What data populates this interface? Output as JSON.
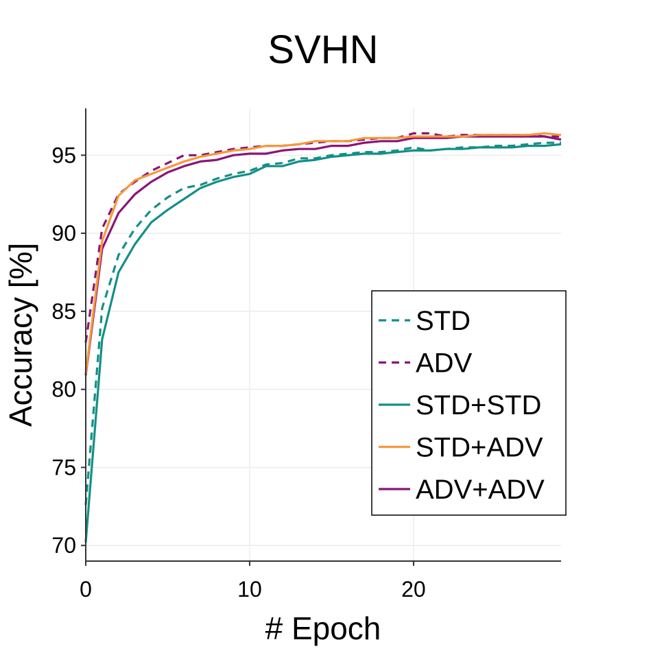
{
  "chart_data": {
    "type": "line",
    "title": "SVHN",
    "xlabel": "# Epoch",
    "ylabel": "Accuracy [%]",
    "xlim": [
      0,
      29
    ],
    "ylim": [
      69,
      98
    ],
    "xticks": [
      0,
      10,
      20
    ],
    "yticks": [
      70,
      75,
      80,
      85,
      90,
      95
    ],
    "grid": true,
    "legend_position": "center-right",
    "x": [
      0,
      1,
      2,
      3,
      4,
      5,
      6,
      7,
      8,
      9,
      10,
      11,
      12,
      13,
      14,
      15,
      16,
      17,
      18,
      19,
      20,
      21,
      22,
      23,
      24,
      25,
      26,
      27,
      28,
      29
    ],
    "series": [
      {
        "name": "STD",
        "color": "#138f86",
        "dash": "dashed",
        "values": [
          72.6,
          85.2,
          88.6,
          90.3,
          91.5,
          92.3,
          92.9,
          93.1,
          93.5,
          93.8,
          94.0,
          94.4,
          94.5,
          94.8,
          94.8,
          95.0,
          95.1,
          95.2,
          95.2,
          95.3,
          95.5,
          95.3,
          95.4,
          95.5,
          95.5,
          95.6,
          95.6,
          95.7,
          95.8,
          95.8
        ]
      },
      {
        "name": "ADV",
        "color": "#8b1479",
        "dash": "dashed",
        "values": [
          83.0,
          90.3,
          92.5,
          93.3,
          94.0,
          94.5,
          95.0,
          95.0,
          95.2,
          95.4,
          95.5,
          95.6,
          95.6,
          95.7,
          95.8,
          95.9,
          95.9,
          96.0,
          96.1,
          96.1,
          96.4,
          96.4,
          96.2,
          96.3,
          96.3,
          96.3,
          96.3,
          96.3,
          96.2,
          96.2
        ]
      },
      {
        "name": "STD+STD",
        "color": "#138f86",
        "dash": "solid",
        "values": [
          70.2,
          83.2,
          87.5,
          89.3,
          90.7,
          91.5,
          92.2,
          92.9,
          93.3,
          93.6,
          93.8,
          94.3,
          94.3,
          94.6,
          94.7,
          94.9,
          95.0,
          95.1,
          95.1,
          95.2,
          95.3,
          95.3,
          95.4,
          95.4,
          95.5,
          95.5,
          95.5,
          95.6,
          95.6,
          95.7
        ]
      },
      {
        "name": "STD+ADV",
        "color": "#f59a38",
        "dash": "solid",
        "values": [
          81.0,
          89.5,
          92.4,
          93.4,
          93.8,
          94.2,
          94.6,
          94.9,
          95.1,
          95.3,
          95.4,
          95.6,
          95.6,
          95.7,
          95.9,
          95.9,
          95.9,
          96.1,
          96.1,
          96.1,
          96.2,
          96.2,
          96.2,
          96.2,
          96.3,
          96.3,
          96.3,
          96.3,
          96.4,
          96.3
        ]
      },
      {
        "name": "ADV+ADV",
        "color": "#8b1479",
        "dash": "solid",
        "values": [
          80.9,
          89.0,
          91.3,
          92.5,
          93.3,
          93.9,
          94.3,
          94.6,
          94.7,
          95.0,
          95.1,
          95.1,
          95.3,
          95.4,
          95.4,
          95.6,
          95.6,
          95.8,
          95.9,
          95.9,
          96.1,
          96.1,
          96.1,
          96.2,
          96.2,
          96.2,
          96.2,
          96.2,
          96.2,
          96.0
        ]
      }
    ]
  }
}
